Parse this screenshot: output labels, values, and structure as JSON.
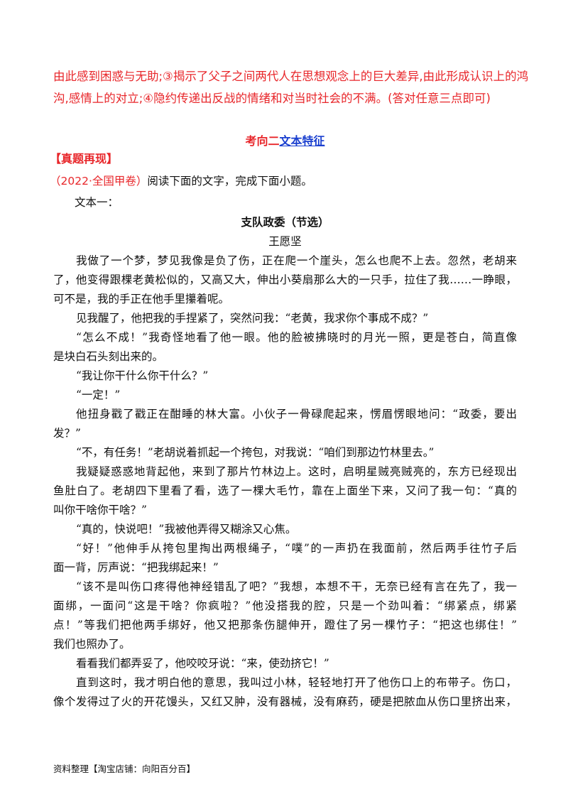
{
  "answer_lines": [
    "由此感到困惑与无助;③揭示了父子之间两代人在思想观念上的巨大差异,由此形成认识上的鸿",
    "沟,感情上的对立;④隐约传递出反战的情绪和对当时社会的不满。(答对任意三点即可)"
  ],
  "section": {
    "prefix": "考向二",
    "link": "文本特征"
  },
  "tag": "【真题再现】",
  "question": {
    "source": "（2022·全国甲卷）",
    "text": "阅读下面的文字，完成下面小题。"
  },
  "text_label": "文本一：",
  "title": "支队政委（节选）",
  "author": "王愿坚",
  "paragraphs": [
    [
      "我做了一个梦，梦见我像是负了伤，正在爬一个崖头，怎么也爬不上去。忽然，老胡来",
      "了，他变得跟棵老黄松似的，又高又大，伸出小葵扇那么大的一只手，拉住了我……一睁眼，",
      "可不是，我的手正在他手里攥着呢。"
    ],
    [
      "见我醒了，他把我的手捏紧了，突然问我：“老黄，我求你个事成不成？”"
    ],
    [
      "“怎么不成！”我奇怪地看了他一眼。他的脸被拂晓时的月光一照，更是苍白，简直像",
      "是块白石头刻出来的。"
    ],
    [
      "“我让你干什么你干什么？”"
    ],
    [
      "“一定！”"
    ],
    [
      "他扭身戳了戳正在酣睡的林大富。小伙子一骨碌爬起来，愣眉愣眼地问：“政委，要出",
      "发？”"
    ],
    [
      "“不，有任务！”老胡说着抓起一个挎包，对我说：“咱们到那边竹林里去。”"
    ],
    [
      "我疑疑惑惑地背起他，来到了那片竹林边上。这时，启明星贼亮贼亮的，东方已经现出",
      "鱼肚白了。老胡四下里看了看，选了一棵大毛竹，靠在上面坐下来，又问了我一句：“真的",
      "叫你干啥你干啥？”"
    ],
    [
      "“真的，快说吧！”我被他弄得又糊涂又心焦。"
    ],
    [
      "“好！”他伸手从挎包里掏出两根绳子，“噗”的一声扔在我面前，然后两手往竹子后",
      "面一背，厉声说：“把我绑起来！”"
    ],
    [
      "“该不是叫伤口疼得他神经错乱了吧？”我想，本想不干，无奈已经有言在先了，我一",
      "面绑，一面问“这是干啥？你疯啦？”他没搭我的腔，只是一个劲叫着：“绑紧点，绑紧",
      "点！”等我们把他两手绑好，他又把那条伤腿伸开，蹬住了另一棵竹子：“把这也绑住！”",
      "我们也照办了。"
    ],
    [
      "看看我们都弄妥了，他咬咬牙说：“来，使劲挤它！”"
    ],
    [
      "直到这时，我才明白他的意思，我叫过小林，轻轻地打开了他伤口上的布带子。伤口，",
      "像个发得过了火的开花馒头，又红又肿，没有器械，没有麻药，硬是把脓血从伤口里挤出来，"
    ]
  ],
  "footer": "资料整理【淘宝店铺：向阳百分百】",
  "colors": {
    "answer": "#e8262a",
    "link": "#1a3fcf"
  }
}
